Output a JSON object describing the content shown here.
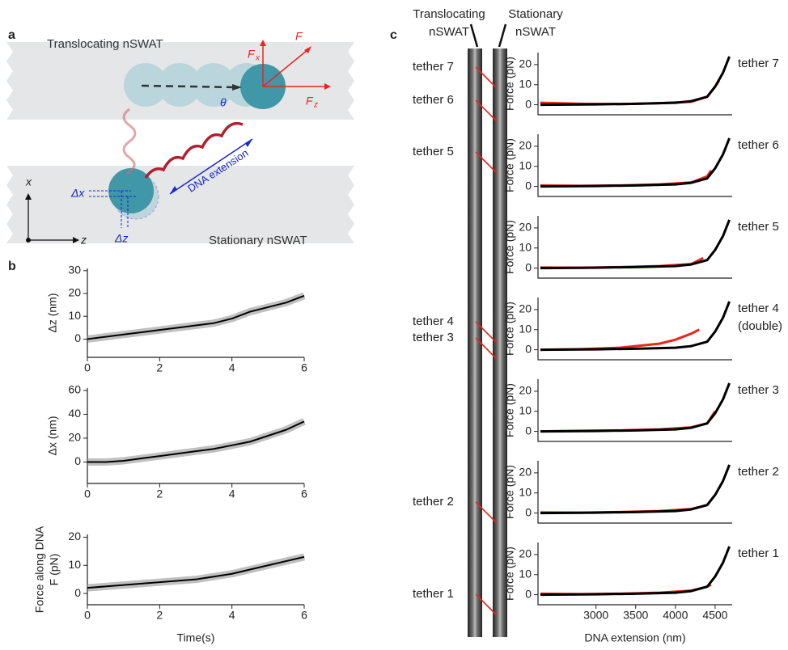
{
  "panel_labels": [
    "a",
    "b",
    "c"
  ],
  "diagram": {
    "top_label": "Translocating nSWAT",
    "bottom_label": "Stationary nSWAT",
    "extension_label": "DNA extension",
    "theta": "θ",
    "force": "F",
    "fx": "F",
    "fx_sub": "x",
    "fz": "F",
    "fz_sub": "z",
    "axis_x": "x",
    "axis_z": "z",
    "dx": "Δx",
    "dz": "Δz"
  },
  "strip": {
    "left_label": [
      "Translocating",
      "nSWAT"
    ],
    "right_label": [
      "Stationary",
      "nSWAT"
    ],
    "tethers": [
      "tether 7",
      "tether 6",
      "tether 5",
      "tether 4",
      "tether 3",
      "tether 2",
      "tether 1"
    ]
  },
  "chart_data": [
    {
      "type": "line",
      "ylabel": "Δz (nm)",
      "xlim": [
        0,
        6
      ],
      "xticks": [
        0,
        2,
        4,
        6
      ],
      "ylim": [
        -8,
        31
      ],
      "yticks": [
        0,
        10,
        20,
        30
      ],
      "series": [
        {
          "color": "#8c8c8c",
          "x": [
            0,
            0.5,
            1,
            1.5,
            2,
            2.5,
            3,
            3.5,
            4,
            4.5,
            5,
            5.5,
            6
          ],
          "values": [
            0,
            1,
            2,
            3,
            4,
            5,
            6,
            7,
            9,
            12,
            14,
            16,
            19
          ]
        },
        {
          "color": "#000000",
          "x": [
            0,
            0.5,
            1,
            1.5,
            2,
            2.5,
            3,
            3.5,
            4,
            4.5,
            5,
            5.5,
            6
          ],
          "values": [
            0,
            1,
            2,
            3,
            4,
            5,
            6,
            7,
            9,
            12,
            14,
            16,
            19
          ]
        }
      ]
    },
    {
      "type": "line",
      "ylabel": "Δx (nm)",
      "xlim": [
        0,
        6
      ],
      "xticks": [
        0,
        2,
        4,
        6
      ],
      "ylim": [
        -18,
        62
      ],
      "yticks": [
        0,
        20,
        40,
        60
      ],
      "series": [
        {
          "color": "#8c8c8c",
          "x": [
            0,
            0.5,
            1,
            1.5,
            2,
            2.5,
            3,
            3.5,
            4,
            4.5,
            5,
            5.5,
            6
          ],
          "values": [
            0,
            0,
            1,
            3,
            5,
            7,
            9,
            11,
            14,
            17,
            22,
            27,
            34
          ]
        },
        {
          "color": "#000000",
          "x": [
            0,
            0.5,
            1,
            1.5,
            2,
            2.5,
            3,
            3.5,
            4,
            4.5,
            5,
            5.5,
            6
          ],
          "values": [
            0,
            0,
            1,
            3,
            5,
            7,
            9,
            11,
            14,
            17,
            22,
            27,
            34
          ]
        }
      ]
    },
    {
      "type": "line",
      "ylabel": [
        "Force along DNA",
        "F (pN)"
      ],
      "xlabel": "Time(s)",
      "xlim": [
        0,
        6
      ],
      "xticks": [
        0,
        2,
        4,
        6
      ],
      "ylim": [
        -4,
        21
      ],
      "yticks": [
        0,
        10,
        20
      ],
      "series": [
        {
          "color": "#8c8c8c",
          "x": [
            0,
            0.5,
            1,
            1.5,
            2,
            2.5,
            3,
            3.5,
            4,
            4.5,
            5,
            5.5,
            6
          ],
          "values": [
            2,
            2.5,
            3,
            3.5,
            4,
            4.5,
            5,
            6,
            7,
            8.5,
            10,
            11.5,
            13
          ]
        },
        {
          "color": "#000000",
          "x": [
            0,
            0.5,
            1,
            1.5,
            2,
            2.5,
            3,
            3.5,
            4,
            4.5,
            5,
            5.5,
            6
          ],
          "values": [
            2,
            2.5,
            3,
            3.5,
            4,
            4.5,
            5,
            6,
            7,
            8.5,
            10,
            11.5,
            13
          ]
        }
      ]
    },
    {
      "type": "line",
      "ylabel": "Force (pN)",
      "annotation": [
        "tether 7"
      ],
      "xlim": [
        2270,
        4715
      ],
      "ylim": [
        -5,
        26
      ],
      "yticks": [
        0,
        10,
        20
      ],
      "series": [
        {
          "color": "#e8261c",
          "x": [
            2300,
            2800,
            3300,
            3800,
            4200,
            4400,
            4500,
            4550
          ],
          "values": [
            1,
            0.5,
            0.3,
            0.8,
            1.5,
            4,
            9,
            12
          ]
        },
        {
          "color": "#000000",
          "x": [
            2300,
            3000,
            3500,
            4000,
            4200,
            4400,
            4500,
            4600,
            4680
          ],
          "values": [
            0,
            0.2,
            0.5,
            1,
            1.8,
            4,
            9,
            16,
            24
          ]
        }
      ]
    },
    {
      "type": "line",
      "ylabel": "Force (pN)",
      "annotation": [
        "tether 6"
      ],
      "xlim": [
        2270,
        4715
      ],
      "ylim": [
        -5,
        26
      ],
      "yticks": [
        0,
        10,
        20
      ],
      "series": [
        {
          "color": "#e8261c",
          "x": [
            2300,
            2800,
            3300,
            3800,
            4200,
            4400,
            4450
          ],
          "values": [
            0.5,
            0.3,
            0.5,
            1,
            2,
            5,
            8
          ]
        },
        {
          "color": "#000000",
          "x": [
            2300,
            3000,
            3500,
            4000,
            4200,
            4400,
            4500,
            4600,
            4680
          ],
          "values": [
            0,
            0.2,
            0.5,
            1,
            1.8,
            4,
            9,
            16,
            24
          ]
        }
      ]
    },
    {
      "type": "line",
      "ylabel": "Force (pN)",
      "annotation": [
        "tether 5"
      ],
      "xlim": [
        2270,
        4715
      ],
      "ylim": [
        -5,
        26
      ],
      "yticks": [
        0,
        10,
        20
      ],
      "series": [
        {
          "color": "#e8261c",
          "x": [
            2300,
            2800,
            3300,
            3800,
            4200,
            4350
          ],
          "values": [
            0.3,
            0.2,
            0.5,
            1,
            2,
            5
          ]
        },
        {
          "color": "#000000",
          "x": [
            2300,
            3000,
            3500,
            4000,
            4200,
            4400,
            4500,
            4600,
            4680
          ],
          "values": [
            0,
            0.2,
            0.5,
            1,
            1.8,
            4,
            9,
            16,
            24
          ]
        }
      ]
    },
    {
      "type": "line",
      "ylabel": "Force (pN)",
      "annotation": [
        "tether 4",
        "(double)"
      ],
      "xlim": [
        2270,
        4715
      ],
      "ylim": [
        -5,
        26
      ],
      "yticks": [
        0,
        10,
        20
      ],
      "series": [
        {
          "color": "#e8261c",
          "x": [
            2300,
            2800,
            3300,
            3800,
            4000,
            4200,
            4300
          ],
          "values": [
            0,
            0.3,
            1,
            3,
            5,
            8,
            10
          ]
        },
        {
          "color": "#000000",
          "x": [
            2300,
            3000,
            3500,
            4000,
            4200,
            4400,
            4500,
            4600,
            4680
          ],
          "values": [
            0,
            0.2,
            0.5,
            1,
            1.8,
            4,
            9,
            16,
            24
          ]
        }
      ]
    },
    {
      "type": "line",
      "ylabel": "Force (pN)",
      "annotation": [
        "tether 3"
      ],
      "xlim": [
        2270,
        4715
      ],
      "ylim": [
        -5,
        26
      ],
      "yticks": [
        0,
        10,
        20
      ],
      "series": [
        {
          "color": "#e8261c",
          "x": [
            2300,
            2800,
            3300,
            3800,
            4200,
            4400,
            4500
          ],
          "values": [
            0,
            0.3,
            0.5,
            1,
            2,
            4,
            10
          ]
        },
        {
          "color": "#000000",
          "x": [
            2300,
            3000,
            3500,
            4000,
            4200,
            4400,
            4500,
            4600,
            4680
          ],
          "values": [
            0,
            0.2,
            0.5,
            1,
            1.8,
            4,
            9,
            16,
            24
          ]
        }
      ]
    },
    {
      "type": "line",
      "ylabel": "Force (pN)",
      "annotation": [
        "tether 2"
      ],
      "xlim": [
        2270,
        4715
      ],
      "ylim": [
        -5,
        26
      ],
      "yticks": [
        0,
        10,
        20
      ],
      "series": [
        {
          "color": "#e8261c",
          "x": [
            2300,
            2800,
            3300,
            3800,
            4200,
            4400,
            4480
          ],
          "values": [
            0.3,
            0.2,
            0.5,
            1,
            2,
            4,
            8
          ]
        },
        {
          "color": "#000000",
          "x": [
            2300,
            3000,
            3500,
            4000,
            4200,
            4400,
            4500,
            4600,
            4680
          ],
          "values": [
            0,
            0.2,
            0.5,
            1,
            1.8,
            4,
            9,
            16,
            24
          ]
        }
      ]
    },
    {
      "type": "line",
      "ylabel": "Force (pN)",
      "annotation": [
        "tether 1"
      ],
      "xlabel": "DNA extension (nm)",
      "xlim": [
        2270,
        4715
      ],
      "xticks": [
        3000,
        3500,
        4000,
        4500
      ],
      "ylim": [
        -5,
        26
      ],
      "yticks": [
        0,
        10,
        20
      ],
      "series": [
        {
          "color": "#e8261c",
          "x": [
            2300,
            2800,
            3300,
            3800,
            4200,
            4400,
            4450
          ],
          "values": [
            0.5,
            0.3,
            0.5,
            1,
            2,
            4,
            5
          ]
        },
        {
          "color": "#000000",
          "x": [
            2300,
            3000,
            3500,
            4000,
            4200,
            4400,
            4500,
            4600,
            4680
          ],
          "values": [
            0,
            0.2,
            0.5,
            1,
            1.8,
            4,
            9,
            16,
            24
          ]
        }
      ]
    }
  ]
}
